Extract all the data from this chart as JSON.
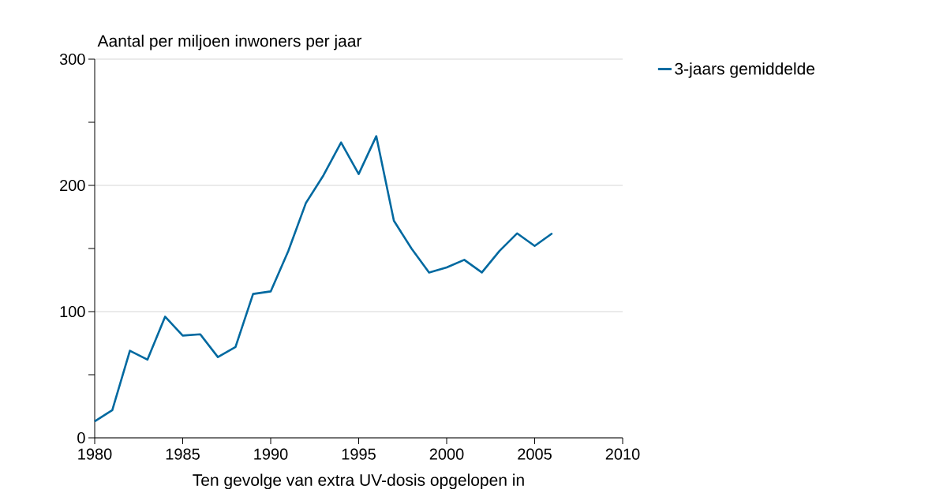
{
  "chart_data": {
    "type": "line",
    "ylabel": "Aantal per miljoen inwoners per jaar",
    "xlabel": "Ten gevolge van extra UV-dosis opgelopen in",
    "x": [
      1980,
      1981,
      1982,
      1983,
      1984,
      1985,
      1986,
      1987,
      1988,
      1989,
      1990,
      1991,
      1992,
      1993,
      1994,
      1995,
      1996,
      1997,
      1998,
      1999,
      2000,
      2001,
      2002,
      2003,
      2004,
      2005,
      2006
    ],
    "series": [
      {
        "name": "3-jaars gemiddelde",
        "color": "#0069a0",
        "values": [
          13,
          22,
          69,
          62,
          96,
          81,
          82,
          64,
          72,
          114,
          116,
          148,
          186,
          208,
          234,
          209,
          239,
          172,
          150,
          131,
          135,
          141,
          131,
          148,
          162,
          152,
          162
        ]
      }
    ],
    "xlim": [
      1980,
      2010
    ],
    "xticks": [
      1980,
      1985,
      1990,
      1995,
      2000,
      2005,
      2010
    ],
    "ylim": [
      0,
      300
    ],
    "yticks": [
      0,
      {
        "value": 50,
        "label": null
      },
      100,
      {
        "value": 150,
        "label": null
      },
      200,
      {
        "value": 250,
        "label": null
      },
      300
    ],
    "grid": "y",
    "legend": "top right",
    "marker": "none",
    "line_style": "solid"
  }
}
